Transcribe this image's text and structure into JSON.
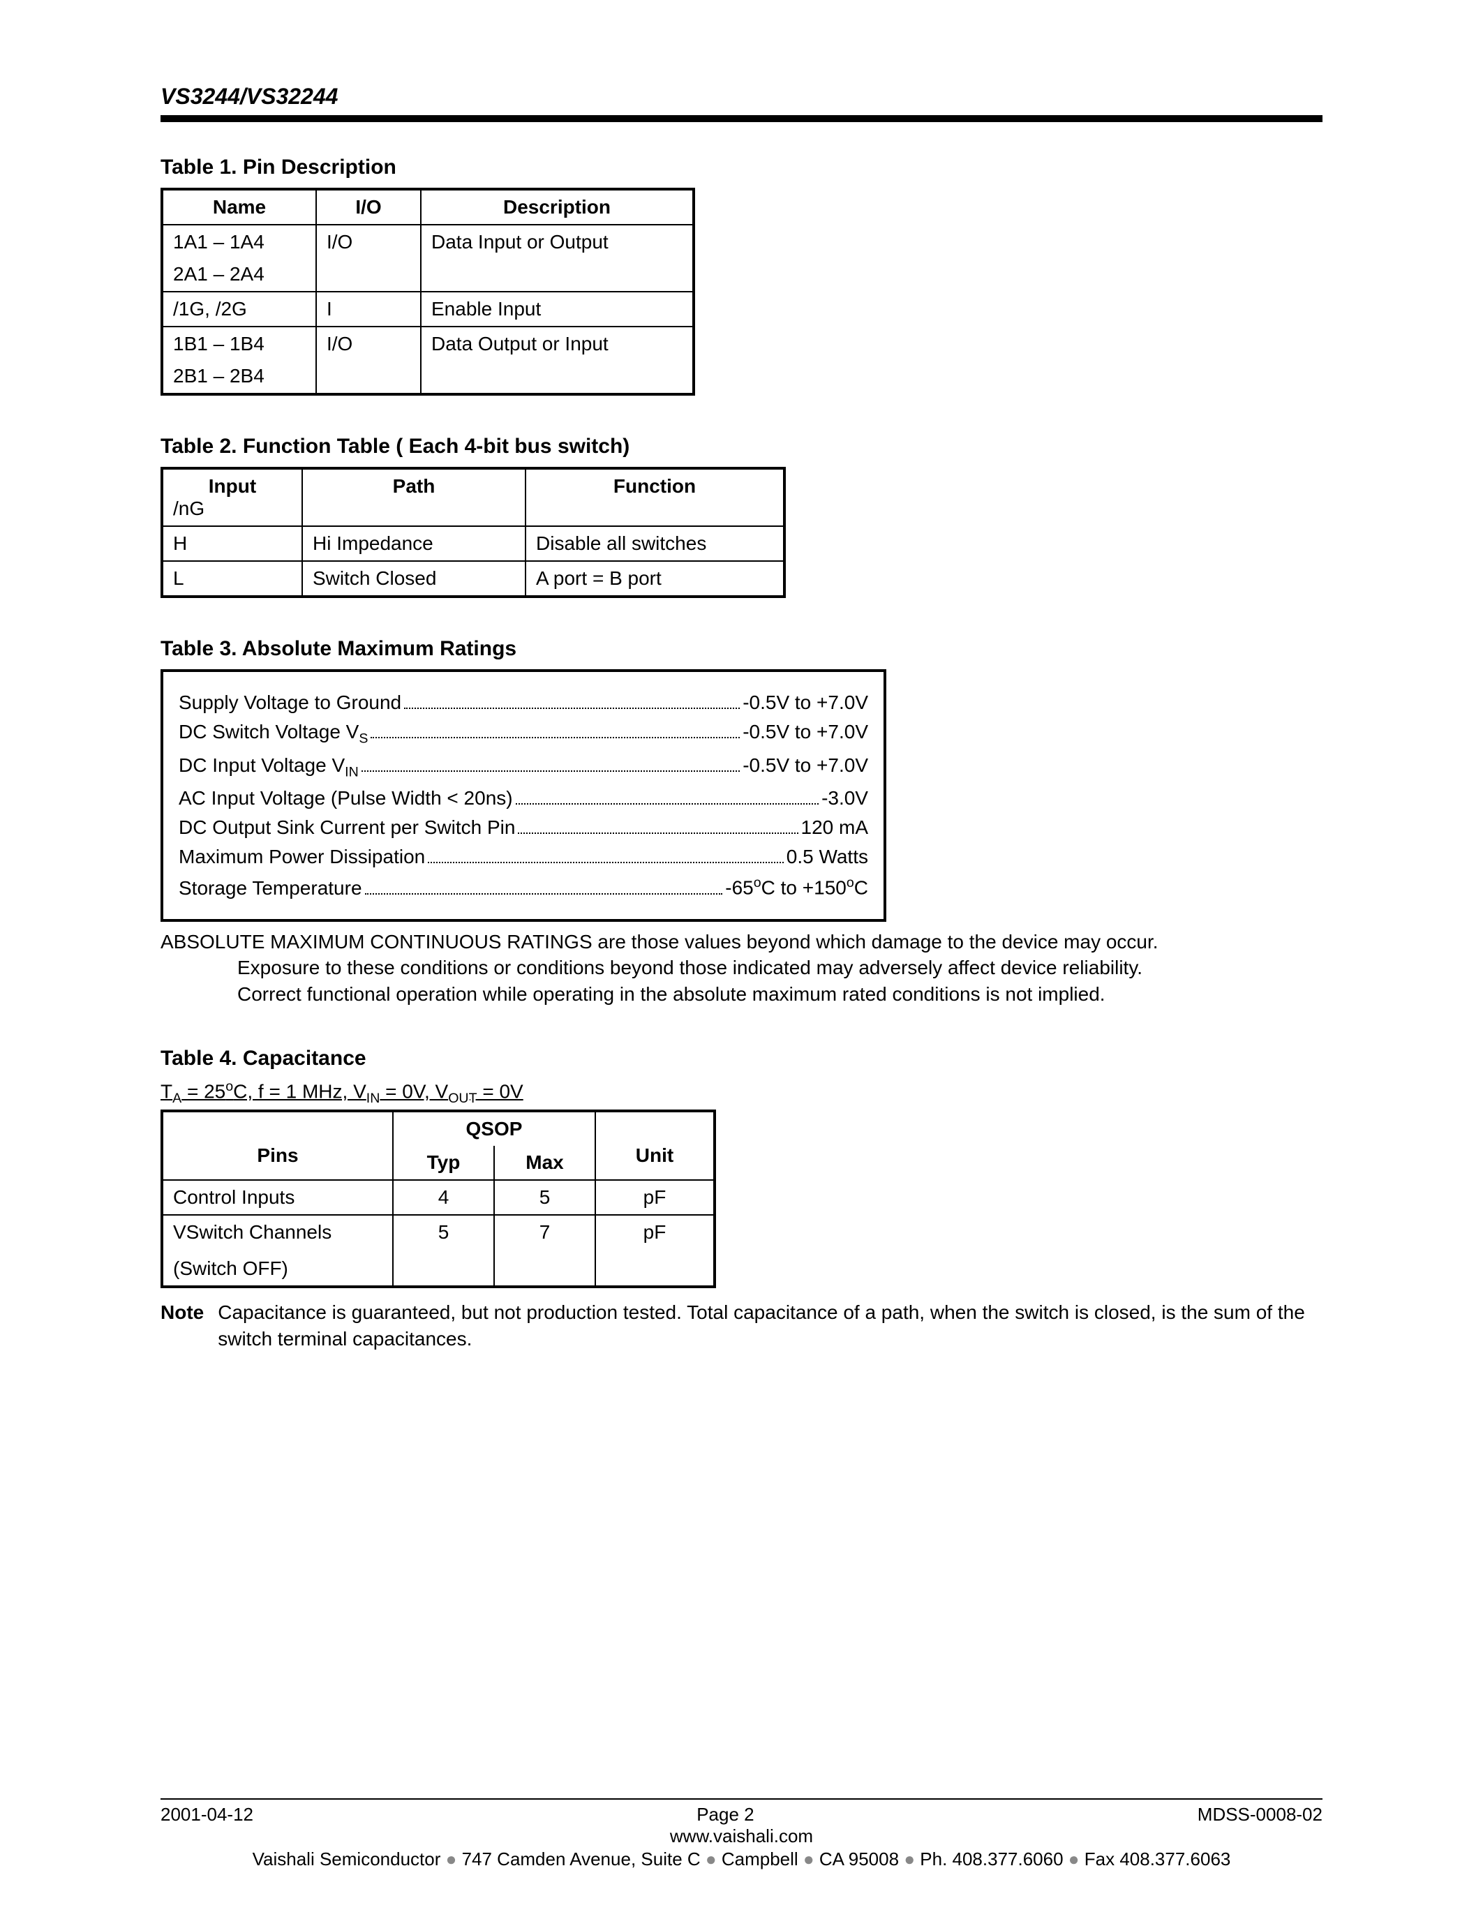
{
  "header": {
    "title": "VS3244/VS32244"
  },
  "table1": {
    "caption": "Table 1.  Pin Description",
    "columns": [
      "Name",
      "I/O",
      "Description"
    ],
    "rows": [
      {
        "name_line1": "1A1 – 1A4",
        "name_line2": "2A1 – 2A4",
        "io": "I/O",
        "desc": "Data Input or Output"
      },
      {
        "name_line1": "/1G, /2G",
        "name_line2": "",
        "io": "I",
        "desc": "Enable Input"
      },
      {
        "name_line1": "1B1 – 1B4",
        "name_line2": "2B1 – 2B4",
        "io": "I/O",
        "desc": "Data Output or Input"
      }
    ],
    "col_widths": [
      "190px",
      "120px",
      "360px"
    ]
  },
  "table2": {
    "caption": "Table 2.  Function Table ( Each 4-bit bus switch)",
    "columns": [
      "Input",
      "Path",
      "Function"
    ],
    "subheader": "/nG",
    "rows": [
      {
        "input": "H",
        "path": "Hi Impedance",
        "func": "Disable all switches"
      },
      {
        "input": "L",
        "path": "Switch Closed",
        "func": "A port = B port"
      }
    ],
    "col_widths": [
      "170px",
      "290px",
      "340px"
    ]
  },
  "table3": {
    "caption": "Table 3.  Absolute Maximum Ratings",
    "rows": [
      {
        "label_html": "Supply Voltage to Ground",
        "value_html": "-0.5V to +7.0V"
      },
      {
        "label_html": "DC Switch Voltage V<sub>S</sub>",
        "value_html": "-0.5V to +7.0V"
      },
      {
        "label_html": "DC Input Voltage V<sub>IN</sub>",
        "value_html": "-0.5V to +7.0V"
      },
      {
        "label_html": "AC Input Voltage (Pulse Width < 20ns)",
        "value_html": "-3.0V"
      },
      {
        "label_html": "DC Output Sink Current per Switch Pin",
        "value_html": "120 mA"
      },
      {
        "label_html": "Maximum Power Dissipation",
        "value_html": "0.5 Watts"
      },
      {
        "label_html": "Storage Temperature",
        "value_html": "-65<sup>o</sup>C to +150<sup>o</sup>C"
      }
    ],
    "note_line1": "ABSOLUTE MAXIMUM CONTINUOUS RATINGS are those values beyond which damage to the device may occur.",
    "note_line2": "Exposure to these conditions or conditions beyond those indicated may adversely affect device reliability.",
    "note_line3": "Correct functional operation while operating in the absolute maximum rated conditions is not implied."
  },
  "table4": {
    "caption": "Table 4.  Capacitance",
    "conditions_html": "T<sub>A</sub> = 25<sup>o</sup>C, f = 1 MHz, V<sub>IN</sub> = 0V, V<sub>OUT</sub> = 0V",
    "group_header": "QSOP",
    "columns": [
      "Pins",
      "Typ",
      "Max",
      "Unit"
    ],
    "rows": [
      {
        "pins_line1": "Control Inputs",
        "pins_line2": "",
        "typ": "4",
        "max": "5",
        "unit": "pF"
      },
      {
        "pins_line1": "VSwitch Channels",
        "pins_line2": "(Switch OFF)",
        "typ": "5",
        "max": "7",
        "unit": "pF"
      }
    ],
    "col_widths": [
      "300px",
      "115px",
      "115px",
      "140px"
    ],
    "note_prefix": "Note",
    "note_text": "Capacitance is guaranteed, but not production tested. Total capacitance of a path, when the switch is closed, is the sum of the switch terminal capacitances."
  },
  "footer": {
    "date": "2001-04-12",
    "page": "Page 2",
    "docnum": "MDSS-0008-02",
    "url": "www.vaishali.com",
    "addr_parts": [
      "Vaishali Semiconductor",
      "747 Camden Avenue, Suite C",
      "Campbell",
      "CA 95008",
      "Ph. 408.377.6060",
      "Fax 408.377.6063"
    ]
  }
}
